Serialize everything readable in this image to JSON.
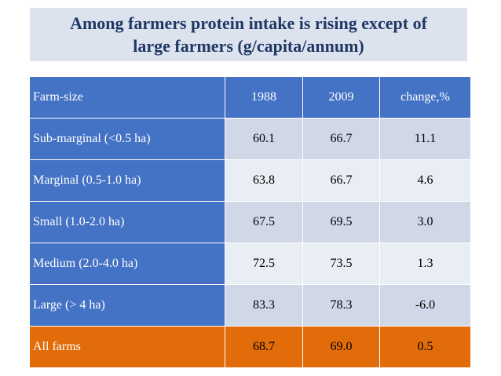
{
  "title": {
    "line1": "Among farmers protein intake is rising except of",
    "line2": "large farmers (g/capita/annum)"
  },
  "table": {
    "headers": [
      "Farm-size",
      "1988",
      "2009",
      "change,%"
    ],
    "rows": [
      [
        "Sub-marginal (<0.5 ha)",
        "60.1",
        "66.7",
        "11.1"
      ],
      [
        "Marginal (0.5-1.0 ha)",
        "63.8",
        "66.7",
        "4.6"
      ],
      [
        "Small (1.0-2.0 ha)",
        "67.5",
        "69.5",
        "3.0"
      ],
      [
        "Medium (2.0-4.0 ha)",
        "72.5",
        "73.5",
        "1.3"
      ],
      [
        "Large (> 4 ha)",
        "83.3",
        "78.3",
        "-6.0"
      ]
    ],
    "total": [
      "All farms",
      "68.7",
      "69.0",
      "0.5"
    ]
  },
  "colors": {
    "header_bg": "#4472c4",
    "row_dark": "#d0d8e8",
    "row_light": "#e9edf4",
    "total_bg": "#e36c0a",
    "title_bg": "#dde3ee",
    "title_text": "#1f3864"
  }
}
